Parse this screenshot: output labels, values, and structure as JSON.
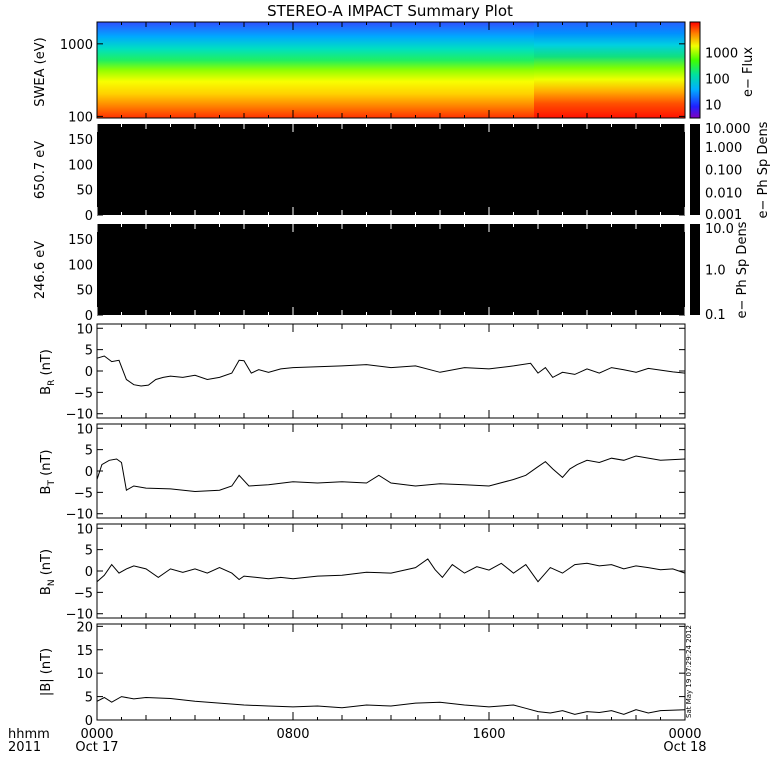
{
  "title": "STEREO-A IMPACT Summary Plot",
  "stamp": "Sat May 19 07:29:24 2012",
  "time_axis": {
    "hhmm_label": "hhmm",
    "year_label": "2011",
    "ticks": [
      {
        "t": 0,
        "time": "0000",
        "date": "Oct 17"
      },
      {
        "t": 8,
        "time": "0800",
        "date": ""
      },
      {
        "t": 16,
        "time": "1600",
        "date": ""
      },
      {
        "t": 24,
        "time": "0000",
        "date": "Oct 18"
      }
    ],
    "xlim": [
      0,
      24
    ]
  },
  "colors": {
    "line": "#000000",
    "background": "#ffffff",
    "black_panel": "#000000"
  },
  "chart_data": [
    {
      "type": "heatmap",
      "ylabel": "SWEA (eV)",
      "yscale": "log",
      "ylim": [
        95,
        2000
      ],
      "yticks": [
        "1000",
        "100"
      ],
      "ytick_values": [
        1000,
        100
      ],
      "colorbar": {
        "label": "e− Flux",
        "scale": "log",
        "range": [
          3,
          15000
        ],
        "ticks": [
          "1000",
          "100",
          "10"
        ],
        "tick_values": [
          1000,
          100,
          10
        ]
      },
      "features": {
        "enhancement_start_hour": 18.2
      }
    },
    {
      "type": "heatmap",
      "ylabel": "650.7 eV",
      "ylim": [
        0,
        180
      ],
      "yticks": [
        "150",
        "100",
        "50",
        "0"
      ],
      "ytick_values": [
        150,
        100,
        50,
        0
      ],
      "fill": "uniform black",
      "colorbar": {
        "label": "e− Ph Sp Dens",
        "scale": "log",
        "range": [
          0.001,
          10
        ],
        "ticks": [
          "10.000",
          "1.000",
          "0.100",
          "0.010",
          "0.001"
        ],
        "tick_values": [
          10,
          1,
          0.1,
          0.01,
          0.001
        ]
      }
    },
    {
      "type": "heatmap",
      "ylabel": "246.6 eV",
      "ylim": [
        0,
        180
      ],
      "yticks": [
        "150",
        "100",
        "50",
        "0"
      ],
      "ytick_values": [
        150,
        100,
        50,
        0
      ],
      "fill": "uniform black",
      "colorbar": {
        "label": "e− Ph Sp Dens",
        "scale": "log",
        "range": [
          0.1,
          10
        ],
        "ticks": [
          "10.0",
          "1.0",
          "0.1"
        ],
        "tick_values": [
          10,
          1,
          0.1
        ]
      }
    },
    {
      "type": "line",
      "ylabel_main": "B",
      "ylabel_sub": "R",
      "ylabel_unit": " (nT)",
      "ylim": [
        -11,
        11
      ],
      "yticks": [
        "10",
        "5",
        "0",
        "−5",
        "−10"
      ],
      "ytick_values": [
        10,
        5,
        0,
        -5,
        -10
      ],
      "x": [
        0,
        0.3,
        0.6,
        0.9,
        1.2,
        1.5,
        1.8,
        2.1,
        2.4,
        2.7,
        3.0,
        3.5,
        4.0,
        4.5,
        5.0,
        5.5,
        5.8,
        6.0,
        6.3,
        6.6,
        7.0,
        7.5,
        8.0,
        9,
        10,
        11,
        12,
        13,
        14,
        15,
        16,
        17,
        17.7,
        18.0,
        18.3,
        18.6,
        19,
        19.5,
        20,
        20.5,
        21,
        21.5,
        22,
        22.5,
        23,
        23.5,
        24
      ],
      "y": [
        3,
        3.5,
        2.2,
        2.5,
        -2,
        -3.2,
        -3.5,
        -3.3,
        -2,
        -1.5,
        -1.2,
        -1.5,
        -1,
        -2,
        -1.5,
        -0.5,
        2.5,
        2.4,
        -0.5,
        0.3,
        -0.3,
        0.5,
        0.8,
        1.0,
        1.2,
        1.5,
        0.8,
        1.2,
        -0.3,
        0.8,
        0.5,
        1.2,
        1.8,
        -0.5,
        0.8,
        -1.5,
        -0.3,
        -0.8,
        0.5,
        -0.5,
        0.8,
        0.3,
        -0.3,
        0.6,
        0.2,
        -0.2,
        -0.5
      ]
    },
    {
      "type": "line",
      "ylabel_main": "B",
      "ylabel_sub": "T",
      "ylabel_unit": " (nT)",
      "ylim": [
        -11,
        11
      ],
      "yticks": [
        "10",
        "5",
        "0",
        "−5",
        "−10"
      ],
      "ytick_values": [
        10,
        5,
        0,
        -5,
        -10
      ],
      "x": [
        0,
        0.2,
        0.5,
        0.8,
        1.0,
        1.2,
        1.5,
        2.0,
        3.0,
        4.0,
        5.0,
        5.5,
        5.8,
        6.2,
        7.0,
        8.0,
        9,
        10,
        11,
        11.5,
        12,
        13,
        14,
        15,
        16,
        17,
        17.5,
        18.0,
        18.3,
        18.6,
        19,
        19.3,
        19.6,
        20,
        20.5,
        21,
        21.5,
        22,
        23,
        24
      ],
      "y": [
        -2,
        1.5,
        2.5,
        2.8,
        2.0,
        -4.5,
        -3.5,
        -4,
        -4.2,
        -4.8,
        -4.5,
        -3.5,
        -1,
        -3.5,
        -3.2,
        -2.5,
        -2.8,
        -2.5,
        -2.8,
        -1,
        -2.8,
        -3.5,
        -3,
        -3.2,
        -3.5,
        -2,
        -1,
        1.0,
        2.2,
        0.5,
        -1.5,
        0.5,
        1.5,
        2.5,
        2.0,
        3.0,
        2.5,
        3.5,
        2.5,
        2.8
      ]
    },
    {
      "type": "line",
      "ylabel_main": "B",
      "ylabel_sub": "N",
      "ylabel_unit": " (nT)",
      "ylim": [
        -11,
        11
      ],
      "yticks": [
        "10",
        "5",
        "0",
        "−5",
        "−10"
      ],
      "ytick_values": [
        10,
        5,
        0,
        -5,
        -10
      ],
      "x": [
        0,
        0.3,
        0.6,
        0.9,
        1.2,
        1.5,
        2.0,
        2.5,
        3.0,
        3.5,
        4.0,
        4.5,
        5.0,
        5.5,
        5.8,
        6.0,
        6.5,
        7.0,
        7.5,
        8.0,
        9,
        10,
        11,
        12,
        13,
        13.5,
        13.8,
        14.1,
        14.5,
        15,
        15.5,
        16,
        16.5,
        17,
        17.5,
        18,
        18.5,
        19,
        19.5,
        20,
        20.5,
        21,
        21.5,
        22,
        22.5,
        23,
        23.5,
        24
      ],
      "y": [
        -2.5,
        -1,
        1.5,
        -0.5,
        0.5,
        1.2,
        0.5,
        -1.5,
        0.5,
        -0.3,
        0.5,
        -0.5,
        0.8,
        -0.5,
        -2,
        -1.2,
        -1.5,
        -1.8,
        -1.5,
        -1.8,
        -1.2,
        -1.0,
        -0.3,
        -0.5,
        0.8,
        2.8,
        0.3,
        -1.5,
        1.5,
        -0.5,
        1.0,
        0.2,
        1.8,
        -0.5,
        1.5,
        -2.5,
        0.8,
        -0.5,
        1.5,
        1.8,
        1.2,
        1.5,
        0.5,
        1.2,
        0.8,
        0.3,
        0.5,
        -0.5
      ]
    },
    {
      "type": "line",
      "ylabel": "|B| (nT)",
      "ylim": [
        0,
        20.5
      ],
      "yticks": [
        "20",
        "15",
        "10",
        "5",
        "0"
      ],
      "ytick_values": [
        20,
        15,
        10,
        5,
        0
      ],
      "x": [
        0,
        0.3,
        0.6,
        1.0,
        1.5,
        2.0,
        3.0,
        4.0,
        5.0,
        6.0,
        7.0,
        8.0,
        9,
        10,
        11,
        12,
        13,
        14,
        15,
        16,
        17,
        17.5,
        18.0,
        18.5,
        19,
        19.5,
        20,
        20.5,
        21,
        21.5,
        22,
        22.5,
        23,
        24
      ],
      "y": [
        4,
        4.8,
        3.8,
        5.0,
        4.5,
        4.8,
        4.6,
        4.0,
        3.6,
        3.2,
        3.0,
        2.8,
        3.0,
        2.6,
        3.2,
        3.0,
        3.6,
        3.8,
        3.2,
        2.8,
        3.2,
        2.5,
        1.8,
        1.5,
        2.0,
        1.2,
        1.8,
        1.6,
        2.0,
        1.2,
        2.2,
        1.5,
        2.0,
        2.2
      ]
    }
  ]
}
